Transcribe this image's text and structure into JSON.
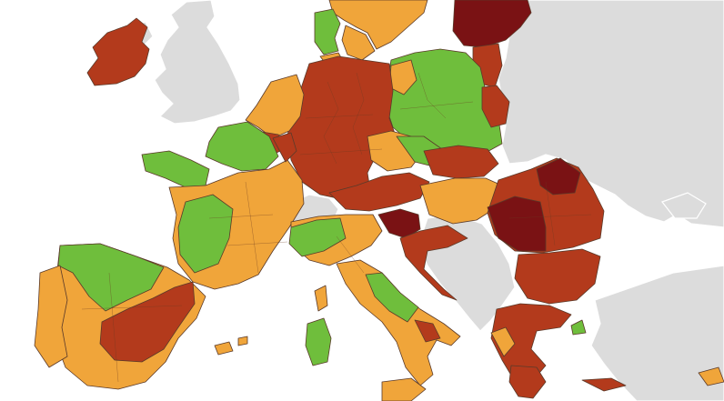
{
  "legend_colors": {
    "green": "#6fbe3c",
    "orange": "#f0a53a",
    "red": "#b33a1c",
    "dark_red": "#7a1214",
    "no_data_grey": "#dcdcdc",
    "sea": "#ffffff"
  },
  "regions": [
    {
      "name": "ireland",
      "level": "red"
    },
    {
      "name": "great-britain",
      "level": "grey"
    },
    {
      "name": "norway-sweden-south",
      "level": "orange"
    },
    {
      "name": "denmark",
      "level": "green"
    },
    {
      "name": "baltic-latvia",
      "level": "dark_red"
    },
    {
      "name": "lithuania",
      "level": "red"
    },
    {
      "name": "poland",
      "level": "green"
    },
    {
      "name": "germany",
      "level": "red"
    },
    {
      "name": "netherlands-belgium",
      "level": "orange"
    },
    {
      "name": "france-west",
      "level": "orange"
    },
    {
      "name": "france-brittany",
      "level": "green"
    },
    {
      "name": "switzerland",
      "level": "grey"
    },
    {
      "name": "austria",
      "level": "red"
    },
    {
      "name": "czechia",
      "level": "orange"
    },
    {
      "name": "hungary",
      "level": "orange"
    },
    {
      "name": "romania",
      "level": "red"
    },
    {
      "name": "bulgaria",
      "level": "red"
    },
    {
      "name": "greece",
      "level": "red"
    },
    {
      "name": "croatia",
      "level": "red"
    },
    {
      "name": "slovenia",
      "level": "dark_red"
    },
    {
      "name": "italy",
      "level": "orange"
    },
    {
      "name": "spain",
      "level": "orange"
    },
    {
      "name": "portugal",
      "level": "orange"
    }
  ]
}
